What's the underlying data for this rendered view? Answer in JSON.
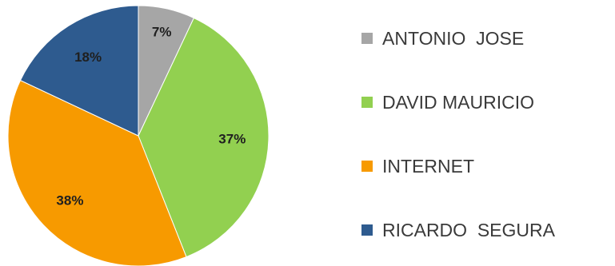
{
  "chart_data": {
    "type": "pie",
    "title": "",
    "series": [
      {
        "label": "ANTONIO  JOSE",
        "value": 7,
        "value_label": "7%",
        "color": "#a6a6a6"
      },
      {
        "label": "DAVID MAURICIO",
        "value": 37,
        "value_label": "37%",
        "color": "#92d050"
      },
      {
        "label": "INTERNET",
        "value": 38,
        "value_label": "38%",
        "color": "#f79a00"
      },
      {
        "label": "RICARDO  SEGURA",
        "value": 18,
        "value_label": "18%",
        "color": "#2e5b8f"
      }
    ],
    "legend_position": "right"
  }
}
